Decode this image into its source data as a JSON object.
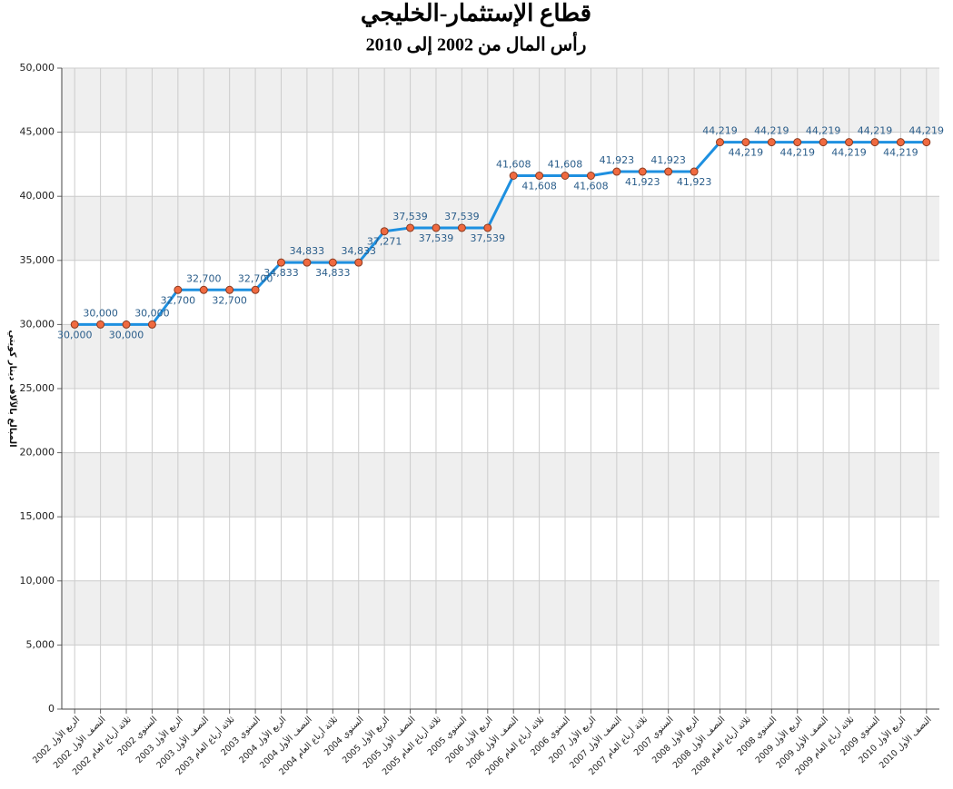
{
  "chart_data": {
    "type": "line",
    "title": "قطاع الإستثمار-الخليجي",
    "subtitle": "رأس المال من 2002 إلى 2010",
    "y_label": "المبالغ بالآلاف دينار كويتي",
    "categories": [
      "الربع الأول 2002",
      "النصف الأول 2002",
      "ثلاثة أرباع العام 2002",
      "السنوي 2002",
      "الربع الأول 2003",
      "النصف الأول 2003",
      "ثلاثة أرباع العام 2003",
      "السنوي 2003",
      "الربع الأول 2004",
      "النصف الأول 2004",
      "ثلاثة أرباع العام 2004",
      "السنوي 2004",
      "الربع الأول 2005",
      "النصف الأول 2005",
      "ثلاثة أرباع العام 2005",
      "السنوي 2005",
      "الربع الأول 2006",
      "النصف الأول 2006",
      "ثلاثة أرباع العام 2006",
      "السنوي 2006",
      "الربع الأول 2007",
      "النصف الأول 2007",
      "ثلاثة أرباع العام 2007",
      "السنوي 2007",
      "الربع الأول 2008",
      "النصف الأول 2008",
      "ثلاثة أرباع العام 2008",
      "السنوي 2008",
      "الربع الأول 2009",
      "النصف الأول 2009",
      "ثلاثة أرباع العام 2009",
      "السنوي 2009",
      "الربع الأول 2010",
      "النصف الأول 2010"
    ],
    "values": [
      30000,
      30000,
      30000,
      30000,
      32700,
      32700,
      32700,
      32700,
      34833,
      34833,
      34833,
      34833,
      37271,
      37539,
      37539,
      37539,
      37539,
      41608,
      41608,
      41608,
      41608,
      41923,
      41923,
      41923,
      41923,
      44219,
      44219,
      44219,
      44219,
      44219,
      44219,
      44219,
      44219,
      44219
    ],
    "value_labels": [
      "30,000",
      "30,000",
      "30,000",
      "30,000",
      "32,700",
      "32,700",
      "32,700",
      "32,700",
      "34,833",
      "34,833",
      "34,833",
      "34,833",
      "37,271",
      "37,539",
      "37,539",
      "37,539",
      "37,539",
      "41,608",
      "41,608",
      "41,608",
      "41,608",
      "41,923",
      "41,923",
      "41,923",
      "41,923",
      "44,219",
      "44,219",
      "44,219",
      "44,219",
      "44,219",
      "44,219",
      "44,219",
      "44,219",
      "44,219"
    ],
    "color": "#1e90e0",
    "marker_color": "#f06a40",
    "ylim": [
      0,
      50000
    ],
    "yticks": [
      0,
      {
        "value": 5000,
        "label": "5,000"
      },
      {
        "value": 10000,
        "label": "10,000"
      },
      {
        "value": 15000,
        "label": "15,000"
      },
      {
        "value": 20000,
        "label": "20,000"
      },
      {
        "value": 25000,
        "label": "25,000"
      },
      {
        "value": 30000,
        "label": "30,000"
      },
      {
        "value": 35000,
        "label": "35,000"
      },
      {
        "value": 40000,
        "label": "40,000"
      },
      {
        "value": 45000,
        "label": "45,000"
      },
      {
        "value": 50000,
        "label": "50,000"
      }
    ],
    "grid": true
  }
}
